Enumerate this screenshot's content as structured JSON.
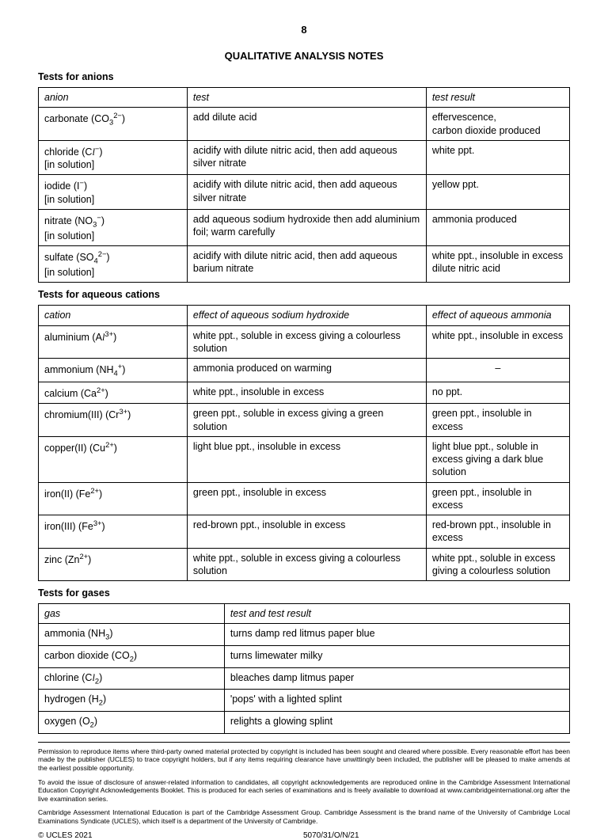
{
  "page_number": "8",
  "main_title": "QUALITATIVE ANALYSIS NOTES",
  "anions": {
    "section": "Tests for anions",
    "headers": [
      "anion",
      "test",
      "test result"
    ],
    "rows": [
      {
        "anion_pre": "carbonate (CO",
        "anion_sub": "3",
        "anion_sup": "2−",
        "anion_post": ")",
        "anion_line2": "",
        "test": "add dilute acid",
        "result": "effervescence,\ncarbon dioxide produced"
      },
      {
        "anion_pre": "chloride (C",
        "anion_italic": "l",
        "anion_sub": "",
        "anion_sup": "−",
        "anion_post": ")",
        "anion_line2": "[in solution]",
        "test": "acidify with dilute nitric acid, then add aqueous silver nitrate",
        "result": "white ppt."
      },
      {
        "anion_pre": "iodide (I",
        "anion_sub": "",
        "anion_sup": "−",
        "anion_post": ")",
        "anion_line2": "[in solution]",
        "test": "acidify with dilute nitric acid, then add aqueous silver nitrate",
        "result": "yellow ppt."
      },
      {
        "anion_pre": "nitrate (NO",
        "anion_sub": "3",
        "anion_sup": "−",
        "anion_post": ")",
        "anion_line2": "[in solution]",
        "test": "add aqueous sodium hydroxide then add aluminium foil; warm carefully",
        "result": "ammonia produced"
      },
      {
        "anion_pre": "sulfate (SO",
        "anion_sub": "4",
        "anion_sup": "2−",
        "anion_post": ")",
        "anion_line2": "[in solution]",
        "test": "acidify with dilute nitric acid, then add aqueous barium nitrate",
        "result": "white ppt., insoluble in excess dilute nitric acid"
      }
    ]
  },
  "cations": {
    "section": "Tests for aqueous cations",
    "headers": [
      "cation",
      "effect of aqueous sodium hydroxide",
      "effect of aqueous ammonia"
    ],
    "rows": [
      {
        "c_pre": "aluminium (A",
        "c_italic": "l",
        "c_sup": "3+",
        "c_post": ")",
        "naoh": "white ppt., soluble in excess giving a colourless solution",
        "nh3": "white ppt., insoluble in excess"
      },
      {
        "c_pre": "ammonium (NH",
        "c_sub": "4",
        "c_sup": "+",
        "c_post": ")",
        "naoh": "ammonia produced on warming",
        "nh3": "–",
        "nh3_center": true
      },
      {
        "c_pre": "calcium (Ca",
        "c_sup": "2+",
        "c_post": ")",
        "naoh": "white ppt., insoluble in excess",
        "nh3": "no ppt."
      },
      {
        "c_pre": "chromium(III) (Cr",
        "c_sup": "3+",
        "c_post": ")",
        "naoh": "green ppt., soluble in excess giving a green solution",
        "nh3": "green ppt., insoluble in excess"
      },
      {
        "c_pre": "copper(II) (Cu",
        "c_sup": "2+",
        "c_post": ")",
        "naoh": "light blue ppt., insoluble in excess",
        "nh3": "light blue ppt., soluble in excess giving a dark blue solution"
      },
      {
        "c_pre": "iron(II) (Fe",
        "c_sup": "2+",
        "c_post": ")",
        "naoh": "green ppt., insoluble in excess",
        "nh3": "green ppt., insoluble in excess"
      },
      {
        "c_pre": "iron(III) (Fe",
        "c_sup": "3+",
        "c_post": ")",
        "naoh": "red-brown ppt., insoluble in excess",
        "nh3": "red-brown ppt., insoluble in excess"
      },
      {
        "c_pre": "zinc (Zn",
        "c_sup": "2+",
        "c_post": ")",
        "naoh": "white ppt., soluble in excess giving a colourless solution",
        "nh3": "white ppt., soluble in excess giving a colourless solution"
      }
    ]
  },
  "gases": {
    "section": "Tests for gases",
    "headers": [
      "gas",
      "test and test result"
    ],
    "rows": [
      {
        "g_pre": "ammonia (NH",
        "g_sub": "3",
        "g_post": ")",
        "result": "turns damp red litmus paper blue"
      },
      {
        "g_pre": "carbon dioxide (CO",
        "g_sub": "2",
        "g_post": ")",
        "result": "turns limewater milky"
      },
      {
        "g_pre": "chlorine (C",
        "g_italic": "l",
        "g_sub": "2",
        "g_post": ")",
        "result": "bleaches damp litmus paper"
      },
      {
        "g_pre": "hydrogen (H",
        "g_sub": "2",
        "g_post": ")",
        "result": "'pops' with a lighted splint"
      },
      {
        "g_pre": "oxygen (O",
        "g_sub": "2",
        "g_post": ")",
        "result": "relights a glowing splint"
      }
    ]
  },
  "copyright": {
    "p1": "Permission to reproduce items where third-party owned material protected by copyright is included has been sought and cleared where possible. Every reasonable effort has been made by the publisher (UCLES) to trace copyright holders, but if any items requiring clearance have unwittingly been included, the publisher will be pleased to make amends at the earliest possible opportunity.",
    "p2": "To avoid the issue of disclosure of answer-related information to candidates, all copyright acknowledgements are reproduced online in the Cambridge Assessment International Education Copyright Acknowledgements Booklet. This is produced for each series of examinations and is freely available to download at www.cambridgeinternational.org after the live examination series.",
    "p3": "Cambridge Assessment International Education is part of the Cambridge Assessment Group. Cambridge Assessment is the brand name of the University of Cambridge Local Examinations Syndicate (UCLES), which itself is a department of the University of Cambridge."
  },
  "footer": {
    "left": "© UCLES 2021",
    "center": "5070/31/O/N/21"
  }
}
